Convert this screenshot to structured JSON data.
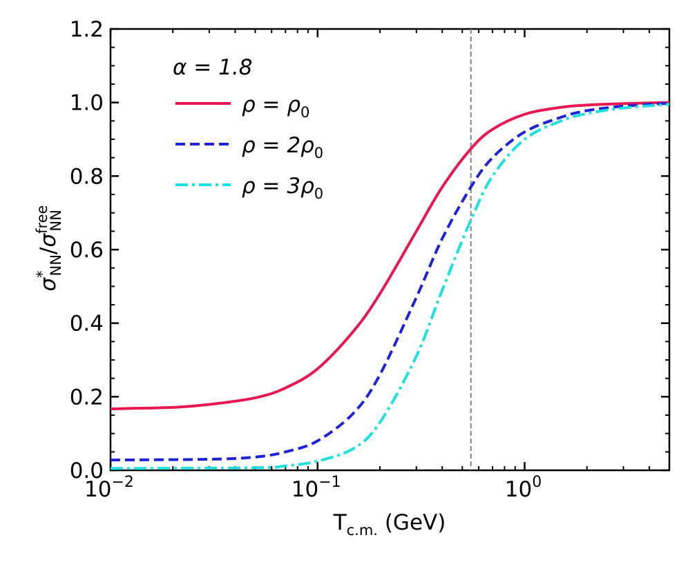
{
  "chart_data": {
    "type": "line",
    "xscale": "log",
    "xlim": [
      0.01,
      5.0
    ],
    "ylim": [
      0.0,
      1.2
    ],
    "xticks": [
      {
        "value": 0.01,
        "base": "10",
        "exp": "−2"
      },
      {
        "value": 0.1,
        "base": "10",
        "exp": "−1"
      },
      {
        "value": 1,
        "base": "10",
        "exp": "0"
      }
    ],
    "yticks": [
      {
        "value": 0.0,
        "label": "0.0"
      },
      {
        "value": 0.2,
        "label": "0.2"
      },
      {
        "value": 0.4,
        "label": "0.4"
      },
      {
        "value": 0.6,
        "label": "0.6"
      },
      {
        "value": 0.8,
        "label": "0.8"
      },
      {
        "value": 1.0,
        "label": "1.0"
      },
      {
        "value": 1.2,
        "label": "1.2"
      }
    ],
    "xlabel": {
      "main": "T",
      "sub": "c.m.",
      "unit": " (GeV)"
    },
    "ylabel": {
      "sym1": "σ",
      "sup1": "*",
      "sub1": "NN",
      "slash": "/",
      "sym2": "σ",
      "sup2": "free",
      "sub2": "NN"
    },
    "legend_title": "α = 1.8",
    "vline_x": 0.55,
    "series": [
      {
        "name": "ρ = ρ0",
        "label_main": "ρ = ρ",
        "label_sub": "0",
        "color": "#E8174F",
        "dash": "solid",
        "x": [
          0.01,
          0.02,
          0.03,
          0.05,
          0.07,
          0.1,
          0.15,
          0.2,
          0.3,
          0.4,
          0.55,
          0.7,
          1.0,
          1.5,
          2.0,
          3.0,
          5.0
        ],
        "y": [
          0.167,
          0.171,
          0.179,
          0.197,
          0.224,
          0.276,
          0.38,
          0.48,
          0.65,
          0.77,
          0.874,
          0.927,
          0.968,
          0.987,
          0.993,
          0.997,
          1.0
        ]
      },
      {
        "name": "ρ = 2ρ0",
        "label_main": "ρ = 2ρ",
        "label_sub": "0",
        "color": "#1E22D8",
        "dash": "dashed",
        "x": [
          0.01,
          0.03,
          0.05,
          0.07,
          0.1,
          0.15,
          0.2,
          0.3,
          0.4,
          0.55,
          0.7,
          1.0,
          1.5,
          2.0,
          3.0,
          5.0
        ],
        "y": [
          0.028,
          0.03,
          0.036,
          0.05,
          0.08,
          0.157,
          0.26,
          0.47,
          0.63,
          0.77,
          0.85,
          0.92,
          0.96,
          0.978,
          0.99,
          0.998
        ]
      },
      {
        "name": "ρ = 3ρ0",
        "label_main": "ρ = 3ρ",
        "label_sub": "0",
        "color": "#1FE0E0",
        "dash": "dashdot",
        "x": [
          0.01,
          0.05,
          0.07,
          0.1,
          0.15,
          0.2,
          0.3,
          0.4,
          0.55,
          0.7,
          1.0,
          1.5,
          2.0,
          3.0,
          5.0
        ],
        "y": [
          0.005,
          0.007,
          0.012,
          0.025,
          0.06,
          0.13,
          0.31,
          0.49,
          0.68,
          0.8,
          0.9,
          0.95,
          0.97,
          0.985,
          0.995
        ]
      }
    ]
  }
}
